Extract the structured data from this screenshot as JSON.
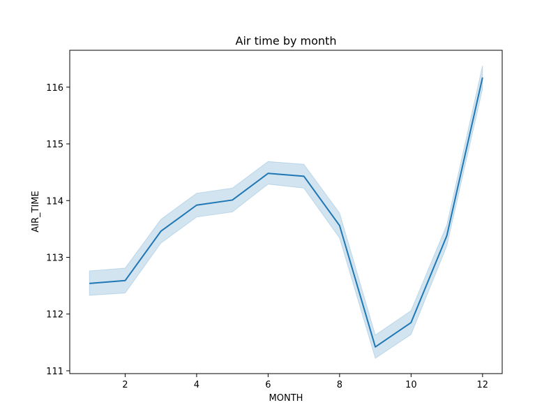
{
  "chart_data": {
    "type": "line",
    "title": "Air time by month",
    "xlabel": "MONTH",
    "ylabel": "AIR_TIME",
    "xlim": [
      0.45,
      12.55
    ],
    "ylim": [
      110.95,
      116.65
    ],
    "xticks": [
      2,
      4,
      6,
      8,
      10,
      12
    ],
    "yticks": [
      111,
      112,
      113,
      114,
      115,
      116
    ],
    "grid": false,
    "series": [
      {
        "color": "#1f77b4",
        "band_color": "#1f77b4",
        "x": [
          1,
          2,
          3,
          4,
          5,
          6,
          7,
          8,
          9,
          10,
          11,
          12
        ],
        "y": [
          112.54,
          112.59,
          113.46,
          113.92,
          114.01,
          114.48,
          114.43,
          113.56,
          111.42,
          111.85,
          113.38,
          116.17
        ],
        "ci_lower": [
          112.33,
          112.37,
          113.25,
          113.71,
          113.8,
          114.29,
          114.22,
          113.34,
          111.22,
          111.64,
          113.2,
          115.97
        ],
        "ci_upper": [
          112.76,
          112.81,
          113.67,
          114.13,
          114.22,
          114.69,
          114.64,
          113.78,
          111.63,
          112.06,
          113.57,
          116.38
        ]
      }
    ]
  }
}
